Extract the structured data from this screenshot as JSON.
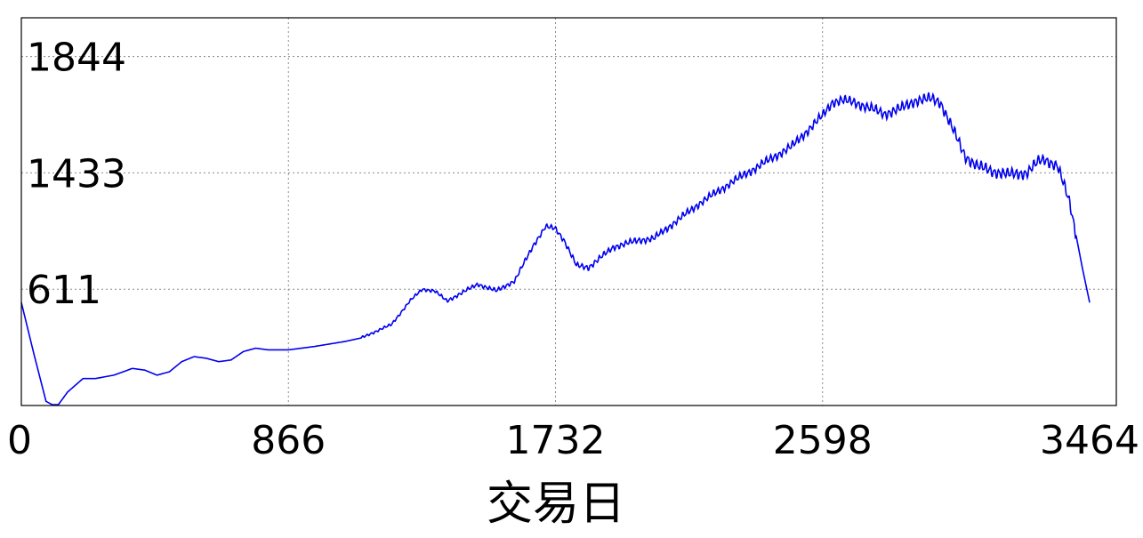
{
  "chart_data": {
    "type": "line",
    "xlabel": "交易日",
    "ylabel": "",
    "title": "",
    "xlim": [
      0,
      3464
    ],
    "x_ticks": [
      "0",
      "866",
      "1732",
      "2598",
      "3464"
    ],
    "x_tick_values": [
      0,
      866,
      1732,
      2598,
      3464
    ],
    "y_ticks": [
      "611",
      "1433",
      "1844"
    ],
    "y_tick_values": [
      611,
      1433,
      1844
    ],
    "y_tick_positions": [
      0.3,
      0.6,
      0.9
    ],
    "grid": true,
    "series": [
      {
        "name": "",
        "color": "#0000ee",
        "x": [
          0,
          40,
          80,
          100,
          120,
          150,
          200,
          240,
          300,
          360,
          400,
          440,
          480,
          520,
          560,
          600,
          640,
          680,
          720,
          760,
          800,
          866,
          950,
          1050,
          1100,
          1200,
          1260,
          1300,
          1340,
          1380,
          1440,
          1480,
          1540,
          1600,
          1660,
          1700,
          1732,
          1760,
          1800,
          1840,
          1880,
          1920,
          2000,
          2050,
          2100,
          2200,
          2300,
          2400,
          2500,
          2598,
          2630,
          2660,
          2700,
          2800,
          2850,
          2900,
          2950,
          2980,
          3020,
          3060,
          3100,
          3150,
          3200,
          3260,
          3300,
          3320,
          3360,
          3400,
          3440,
          3464
        ],
        "y": [
          611,
          311,
          25,
          5,
          5,
          80,
          160,
          160,
          180,
          220,
          210,
          180,
          200,
          260,
          290,
          280,
          260,
          270,
          320,
          340,
          330,
          330,
          350,
          380,
          400,
          480,
          620,
          690,
          680,
          620,
          680,
          720,
          680,
          740,
          950,
          1060,
          1050,
          980,
          830,
          820,
          880,
          940,
          980,
          990,
          1060,
          1200,
          1320,
          1430,
          1540,
          1720,
          1800,
          1810,
          1800,
          1730,
          1760,
          1810,
          1820,
          1800,
          1640,
          1480,
          1420,
          1390,
          1370,
          1380,
          1450,
          1460,
          1420,
          1200,
          820,
          611
        ]
      }
    ]
  }
}
